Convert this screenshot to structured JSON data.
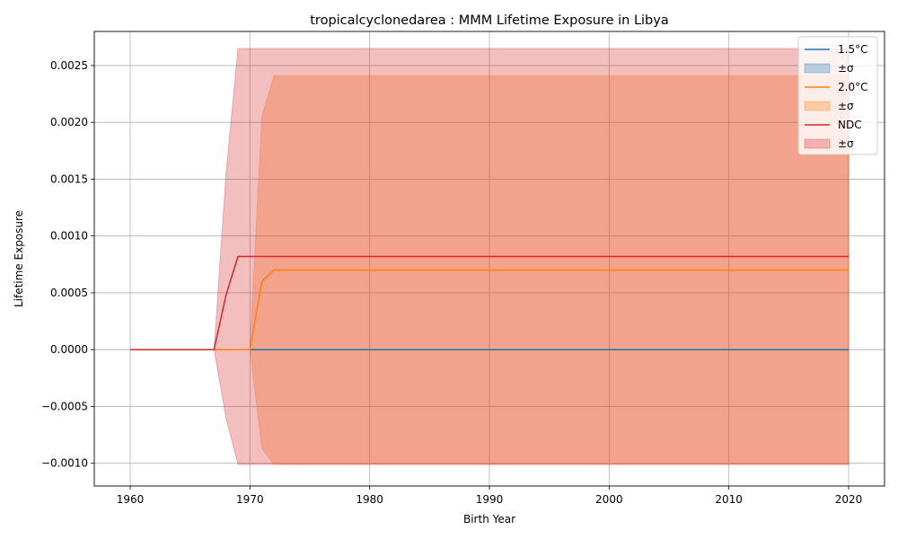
{
  "chart_data": {
    "type": "line",
    "title": "tropicalcyclonedarea : MMM Lifetime Exposure in Libya",
    "xlabel": "Birth Year",
    "ylabel": "Lifetime Exposure",
    "xlim": [
      1957,
      2023
    ],
    "ylim": [
      -0.0012,
      0.0028
    ],
    "xticks": [
      1960,
      1970,
      1980,
      1990,
      2000,
      2010,
      2020
    ],
    "yticks": [
      -0.001,
      -0.0005,
      0.0,
      0.0005,
      0.001,
      0.0015,
      0.002,
      0.0025
    ],
    "ytick_labels": [
      "−0.0010",
      "−0.0005",
      "0.0000",
      "0.0005",
      "0.0010",
      "0.0015",
      "0.0020",
      "0.0025"
    ],
    "grid": true,
    "legend_position": "top-right",
    "series": [
      {
        "name": "1.5°C",
        "band_label": "±σ",
        "color": "#1f77b4",
        "x": [
          1960,
          1967,
          1968,
          1969,
          1970,
          1971,
          1972,
          2020
        ],
        "y": [
          0,
          0,
          0,
          0,
          0,
          0,
          0,
          0
        ],
        "lower": [
          0,
          0,
          0,
          0,
          0,
          0,
          0,
          0
        ],
        "upper": [
          0,
          0,
          0,
          0,
          0,
          0,
          0,
          0
        ]
      },
      {
        "name": "2.0°C",
        "band_label": "±σ",
        "color": "#ff7f0e",
        "x": [
          1960,
          1967,
          1968,
          1969,
          1970,
          1971,
          1972,
          2020
        ],
        "y": [
          0,
          0,
          0,
          0,
          0,
          0.0006,
          0.0007,
          0.0007
        ],
        "lower": [
          0,
          0,
          0,
          0,
          0,
          -0.00087,
          -0.00101,
          -0.00101
        ],
        "upper": [
          0,
          0,
          0,
          0,
          0,
          0.00205,
          0.00241,
          0.00241
        ]
      },
      {
        "name": "NDC",
        "band_label": "±σ",
        "color": "#d62728",
        "x": [
          1960,
          1967,
          1968,
          1969,
          1970,
          1971,
          1972,
          2020
        ],
        "y": [
          0,
          0,
          0.00048,
          0.00082,
          0.00082,
          0.00082,
          0.00082,
          0.00082
        ],
        "lower": [
          0,
          0,
          -0.0006,
          -0.00101,
          -0.00101,
          -0.00101,
          -0.00101,
          -0.00101
        ],
        "upper": [
          0,
          0,
          0.00155,
          0.00265,
          0.00265,
          0.00265,
          0.00265,
          0.00265
        ]
      }
    ]
  }
}
